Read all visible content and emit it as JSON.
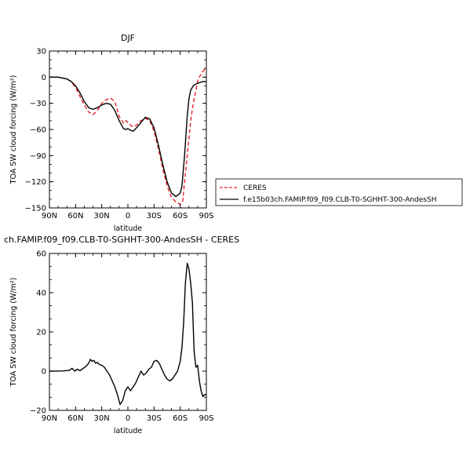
{
  "chart_data": [
    {
      "type": "line",
      "title": "DJF",
      "xlabel": "latitude",
      "ylabel": "TOA SW cloud forcing (W/m²)",
      "xlim": [
        90,
        -90
      ],
      "ylim": [
        -150,
        30
      ],
      "xticks": [
        90,
        60,
        30,
        0,
        -30,
        -60,
        -90
      ],
      "xtick_labels": [
        "90N",
        "60N",
        "30N",
        "0",
        "30S",
        "60S",
        "90S"
      ],
      "yticks": [
        30,
        0,
        -30,
        -60,
        -90,
        -120,
        -150
      ],
      "ytick_labels": [
        "30",
        "0",
        "−30",
        "−60",
        "−90",
        "−120",
        "−150"
      ],
      "legend_position": "right",
      "series": [
        {
          "name": "CERES",
          "color": "#e8202a",
          "dash": "dashed",
          "x": [
            90,
            80,
            70,
            65,
            60,
            55,
            50,
            45,
            40,
            35,
            30,
            25,
            20,
            15,
            10,
            5,
            2,
            0,
            -3,
            -6,
            -10,
            -15,
            -20,
            -25,
            -30,
            -35,
            -40,
            -45,
            -50,
            -55,
            -60,
            -63,
            -65,
            -68,
            -70,
            -72,
            -75,
            -78,
            -80,
            -82,
            -85,
            -88,
            -90
          ],
          "y": [
            0,
            0,
            -2,
            -5,
            -12,
            -22,
            -32,
            -40,
            -43,
            -38,
            -30,
            -26,
            -24,
            -28,
            -45,
            -53,
            -50,
            -52,
            -55,
            -57,
            -55,
            -50,
            -47,
            -50,
            -62,
            -82,
            -105,
            -125,
            -138,
            -143,
            -146,
            -142,
            -120,
            -90,
            -70,
            -50,
            -30,
            -15,
            -5,
            0,
            5,
            9,
            8
          ]
        },
        {
          "name": "f.e15b03ch.FAMIP.f09_f09.CLB-T0-SGHHT-300-AndesSH",
          "color": "#000000",
          "dash": "solid",
          "x": [
            90,
            80,
            70,
            65,
            60,
            55,
            50,
            45,
            40,
            35,
            30,
            25,
            20,
            15,
            10,
            5,
            2,
            0,
            -3,
            -6,
            -10,
            -15,
            -20,
            -25,
            -30,
            -35,
            -40,
            -45,
            -50,
            -55,
            -60,
            -62,
            -65,
            -68,
            -70,
            -72,
            -75,
            -78,
            -80,
            -83,
            -86,
            -88,
            -90
          ],
          "y": [
            0,
            0,
            -2,
            -5,
            -10,
            -18,
            -28,
            -35,
            -37,
            -35,
            -32,
            -30,
            -31,
            -38,
            -50,
            -59,
            -60,
            -59,
            -61,
            -62,
            -58,
            -52,
            -46,
            -48,
            -58,
            -78,
            -100,
            -120,
            -133,
            -137,
            -133,
            -125,
            -90,
            -45,
            -25,
            -15,
            -10,
            -8,
            -7,
            -6,
            -5,
            -5,
            -5
          ]
        }
      ]
    },
    {
      "type": "line",
      "title": "ch.FAMIP.f09_f09.CLB-T0-SGHHT-300-AndesSH - CERES",
      "xlabel": "latitude",
      "ylabel": "TOA SW cloud forcing (W/m²)",
      "xlim": [
        90,
        -90
      ],
      "ylim": [
        -20,
        60
      ],
      "xticks": [
        90,
        60,
        30,
        0,
        -30,
        -60,
        -90
      ],
      "xtick_labels": [
        "90N",
        "60N",
        "30N",
        "0",
        "30S",
        "60S",
        "90S"
      ],
      "yticks": [
        60,
        40,
        20,
        0,
        -20
      ],
      "ytick_labels": [
        "60",
        "40",
        "20",
        "0",
        "−20"
      ],
      "series": [
        {
          "color": "#000000",
          "dash": "solid",
          "x": [
            90,
            75,
            70,
            67,
            64,
            61,
            58,
            55,
            51,
            48,
            45,
            43,
            41,
            39,
            37,
            35,
            33,
            30,
            27,
            24,
            21,
            18,
            15,
            12,
            9,
            6,
            3,
            0,
            -3,
            -6,
            -9,
            -12,
            -15,
            -18,
            -21,
            -24,
            -27,
            -30,
            -33,
            -36,
            -39,
            -42,
            -45,
            -48,
            -51,
            -54,
            -57,
            -60,
            -62,
            -64,
            -66,
            -68,
            -70,
            -72,
            -74,
            -76,
            -78,
            -80,
            -82,
            -84,
            -86,
            -88,
            -90
          ],
          "y": [
            0,
            0.1,
            0.3,
            0.5,
            1.5,
            0,
            1,
            0.2,
            1.5,
            2.5,
            4,
            6,
            5,
            5.5,
            4,
            4.5,
            3.5,
            3,
            2,
            0,
            -2,
            -5,
            -8,
            -12,
            -17,
            -15,
            -10,
            -8,
            -10,
            -8,
            -6,
            -3,
            0,
            -2,
            -1,
            1,
            2,
            5,
            5.5,
            4,
            1,
            -2,
            -4,
            -5,
            -4,
            -2,
            0,
            5,
            12,
            25,
            45,
            55,
            52,
            45,
            35,
            10,
            2,
            3,
            -5,
            -10,
            -13,
            -12,
            -12
          ]
        }
      ]
    }
  ]
}
